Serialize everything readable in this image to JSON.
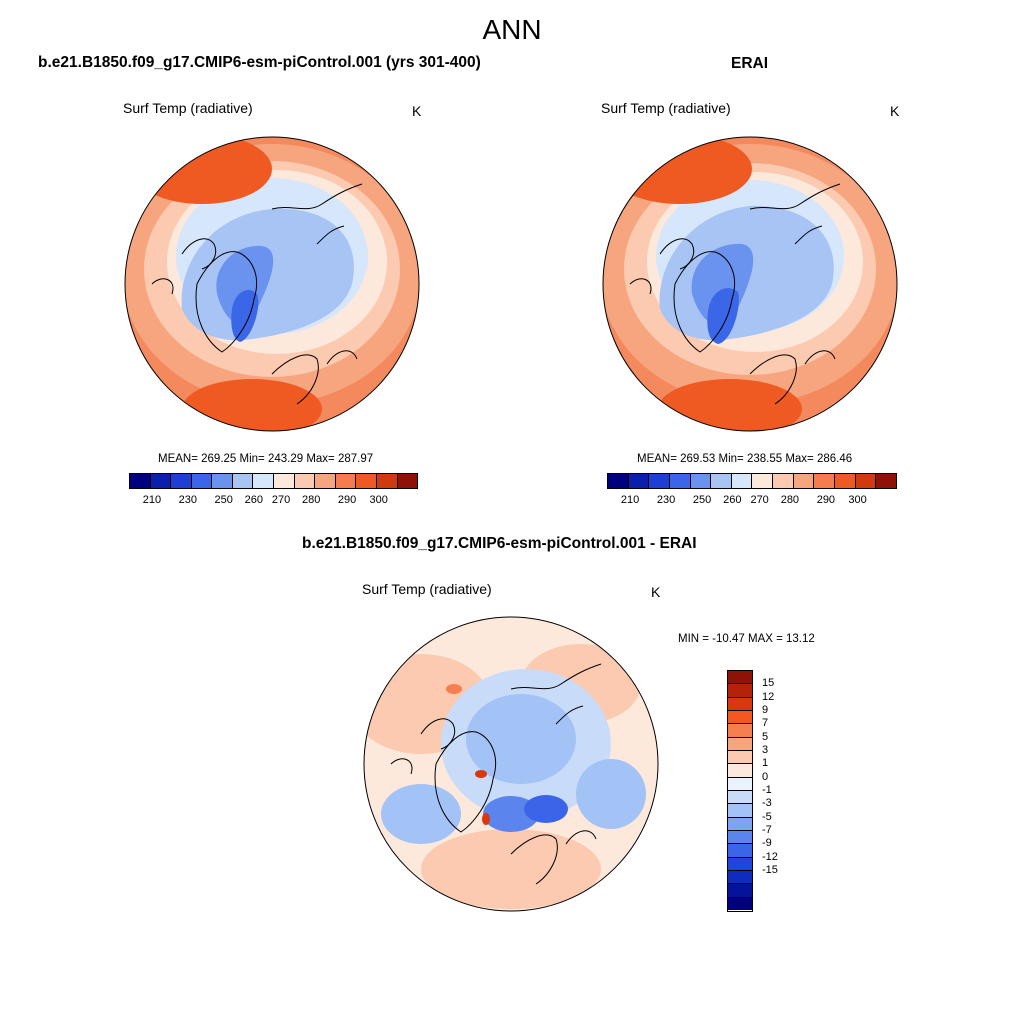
{
  "page": {
    "title": "ANN"
  },
  "panels": {
    "model": {
      "title": "b.e21.B1850.f09_g17.CMIP6-esm-piControl.001 (yrs 301-400)",
      "variable": "Surf Temp (radiative)",
      "units": "K",
      "stats": "MEAN= 269.25  Min= 243.29  Max= 287.97"
    },
    "obs": {
      "title": "ERAI",
      "variable": "Surf Temp (radiative)",
      "units": "K",
      "stats": "MEAN= 269.53  Min= 238.55  Max= 286.46"
    },
    "diff": {
      "title": "b.e21.B1850.f09_g17.CMIP6-esm-piControl.001 - ERAI",
      "variable": "Surf Temp (radiative)",
      "units": "K",
      "stats": "MIN = -10.47 MAX =  13.12"
    }
  },
  "colorbars": {
    "abs": {
      "colors": [
        "#00007f",
        "#0a1faa",
        "#1f3fd4",
        "#3a66e8",
        "#6a92ef",
        "#a8c4f5",
        "#d6e6fb",
        "#fde9dc",
        "#fbcab0",
        "#f7a57f",
        "#f47c4f",
        "#ee5a22",
        "#cf3b0e",
        "#8e1306"
      ],
      "tick_labels": [
        "210",
        "230",
        "250",
        "260",
        "270",
        "280",
        "290",
        "300"
      ]
    },
    "diff": {
      "colors": [
        "#8e1306",
        "#b4220b",
        "#d9380e",
        "#f4571f",
        "#f57f4f",
        "#f8a57f",
        "#fbcab0",
        "#fde9dc",
        "#e9f2fd",
        "#c8dcfa",
        "#a3c2f5",
        "#7ea3ef",
        "#5b84ec",
        "#3a65e8",
        "#1f45dc",
        "#0f2cc0",
        "#05139a",
        "#00007f"
      ],
      "labels": [
        "15",
        "12",
        "9",
        "7",
        "5",
        "3",
        "1",
        "0",
        "-1",
        "-3",
        "-5",
        "-7",
        "-9",
        "-12",
        "-15"
      ]
    }
  },
  "chart_data": [
    {
      "type": "heatmap",
      "title": "b.e21.B1850.f09_g17.CMIP6-esm-piControl.001 (yrs 301-400)",
      "variable": "Surf Temp (radiative)",
      "units": "K",
      "projection": "north polar stereographic",
      "mean": 269.25,
      "min": 243.29,
      "max": 287.97,
      "contour_levels": [
        210,
        220,
        230,
        240,
        250,
        255,
        260,
        265,
        270,
        275,
        280,
        285,
        290,
        295,
        300
      ]
    },
    {
      "type": "heatmap",
      "title": "ERAI",
      "variable": "Surf Temp (radiative)",
      "units": "K",
      "projection": "north polar stereographic",
      "mean": 269.53,
      "min": 238.55,
      "max": 286.46,
      "contour_levels": [
        210,
        220,
        230,
        240,
        250,
        255,
        260,
        265,
        270,
        275,
        280,
        285,
        290,
        295,
        300
      ]
    },
    {
      "type": "heatmap",
      "title": "b.e21.B1850.f09_g17.CMIP6-esm-piControl.001 - ERAI",
      "variable": "Surf Temp (radiative)",
      "units": "K",
      "projection": "north polar stereographic",
      "min": -10.47,
      "max": 13.12,
      "contour_levels": [
        -15,
        -12,
        -9,
        -7,
        -5,
        -3,
        -1,
        0,
        1,
        3,
        5,
        7,
        9,
        12,
        15
      ]
    }
  ]
}
